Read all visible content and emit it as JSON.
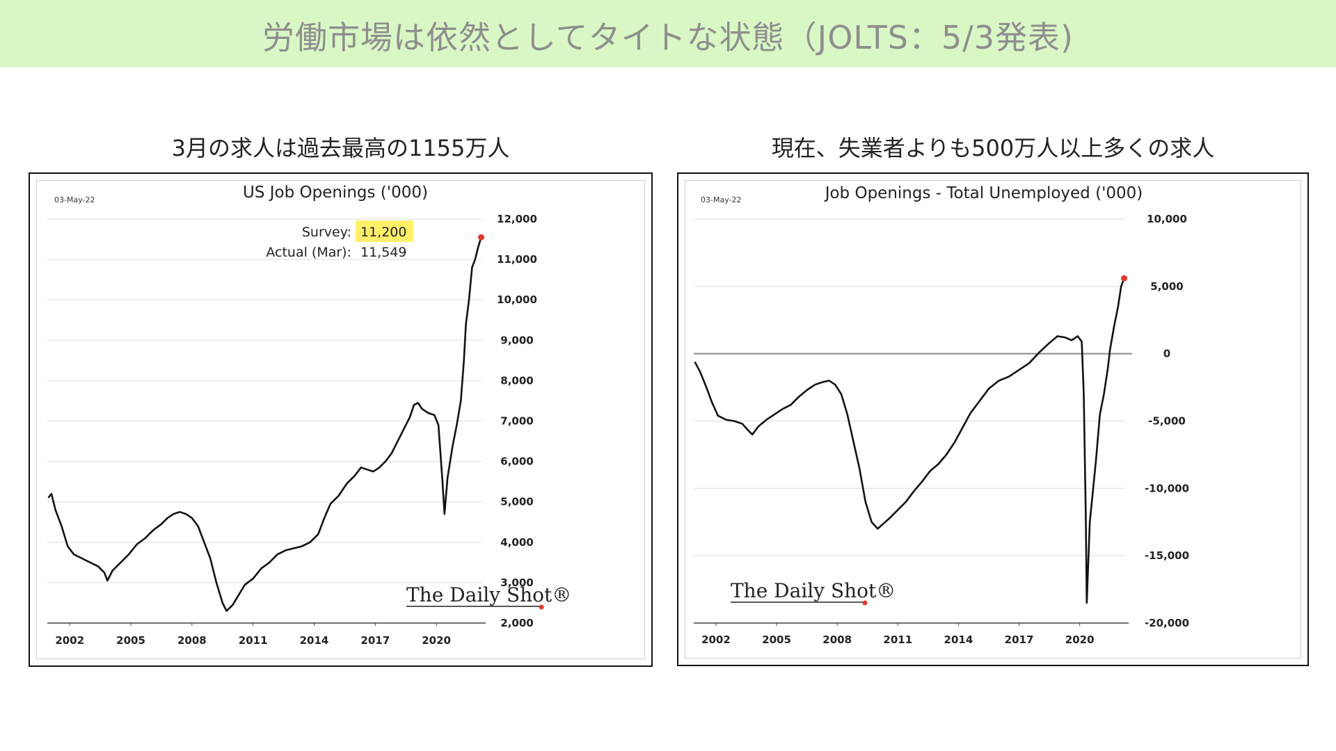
{
  "banner": {
    "title": "労働市場は依然としてタイトな状態（JOLTS：5/3発表)"
  },
  "left": {
    "subtitle": "3月の求人は過去最高の1155万人"
  },
  "right": {
    "subtitle": "現在、失業者よりも500万人以上多くの求人"
  },
  "colors": {
    "banner_bg": "#d9f7c4",
    "line": "#111111",
    "last_point": "#e03a2e",
    "highlight": "#fff06a",
    "zero_line": "#888888",
    "grid": "#e6e6e6"
  },
  "chart_data": [
    {
      "type": "line",
      "title": "US Job Openings ('000)",
      "date_stamp": "03-May-22",
      "brand": "The Daily Shot®",
      "annotation": {
        "survey_label": "Survey:",
        "survey_value": "11,200",
        "actual_label": "Actual (Mar):",
        "actual_value": "11,549"
      },
      "xlim": [
        2000.9,
        2022.25
      ],
      "ylim": [
        2000,
        12000
      ],
      "x_ticks": [
        2002,
        2005,
        2008,
        2011,
        2014,
        2017,
        2020
      ],
      "x_tick_labels": [
        "2002",
        "2005",
        "2008",
        "2011",
        "2014",
        "2017",
        "2020"
      ],
      "y_ticks": [
        2000,
        3000,
        4000,
        5000,
        6000,
        7000,
        8000,
        9000,
        10000,
        11000,
        12000
      ],
      "y_tick_labels": [
        "2,000",
        "3,000",
        "4,000",
        "5,000",
        "6,000",
        "7,000",
        "8,000",
        "9,000",
        "10,000",
        "11,000",
        "12,000"
      ],
      "grid": true,
      "y_axis_position": "right",
      "series": [
        {
          "values": [
            [
              2000.95,
              5100
            ],
            [
              2001.1,
              5200
            ],
            [
              2001.3,
              4800
            ],
            [
              2001.6,
              4400
            ],
            [
              2001.9,
              3900
            ],
            [
              2002.2,
              3700
            ],
            [
              2002.6,
              3600
            ],
            [
              2003.0,
              3500
            ],
            [
              2003.4,
              3400
            ],
            [
              2003.7,
              3250
            ],
            [
              2003.85,
              3050
            ],
            [
              2004.1,
              3300
            ],
            [
              2004.5,
              3500
            ],
            [
              2004.9,
              3700
            ],
            [
              2005.3,
              3950
            ],
            [
              2005.7,
              4100
            ],
            [
              2006.1,
              4300
            ],
            [
              2006.5,
              4450
            ],
            [
              2006.8,
              4600
            ],
            [
              2007.1,
              4700
            ],
            [
              2007.4,
              4750
            ],
            [
              2007.7,
              4700
            ],
            [
              2008.0,
              4600
            ],
            [
              2008.3,
              4400
            ],
            [
              2008.6,
              4000
            ],
            [
              2008.9,
              3600
            ],
            [
              2009.2,
              3000
            ],
            [
              2009.5,
              2500
            ],
            [
              2009.7,
              2300
            ],
            [
              2010.0,
              2450
            ],
            [
              2010.3,
              2700
            ],
            [
              2010.6,
              2950
            ],
            [
              2011.0,
              3100
            ],
            [
              2011.4,
              3350
            ],
            [
              2011.8,
              3500
            ],
            [
              2012.2,
              3700
            ],
            [
              2012.6,
              3800
            ],
            [
              2013.0,
              3850
            ],
            [
              2013.4,
              3900
            ],
            [
              2013.8,
              4000
            ],
            [
              2014.2,
              4200
            ],
            [
              2014.5,
              4600
            ],
            [
              2014.8,
              4950
            ],
            [
              2015.2,
              5150
            ],
            [
              2015.6,
              5450
            ],
            [
              2016.0,
              5650
            ],
            [
              2016.3,
              5850
            ],
            [
              2016.6,
              5800
            ],
            [
              2016.9,
              5750
            ],
            [
              2017.2,
              5850
            ],
            [
              2017.5,
              6000
            ],
            [
              2017.8,
              6200
            ],
            [
              2018.1,
              6500
            ],
            [
              2018.4,
              6800
            ],
            [
              2018.7,
              7100
            ],
            [
              2018.9,
              7400
            ],
            [
              2019.1,
              7450
            ],
            [
              2019.3,
              7300
            ],
            [
              2019.6,
              7200
            ],
            [
              2019.9,
              7150
            ],
            [
              2020.1,
              6900
            ],
            [
              2020.3,
              5500
            ],
            [
              2020.4,
              4700
            ],
            [
              2020.55,
              5600
            ],
            [
              2020.8,
              6400
            ],
            [
              2021.0,
              6900
            ],
            [
              2021.2,
              7500
            ],
            [
              2021.35,
              8500
            ],
            [
              2021.45,
              9400
            ],
            [
              2021.6,
              10000
            ],
            [
              2021.75,
              10800
            ],
            [
              2021.9,
              11000
            ],
            [
              2022.05,
              11300
            ],
            [
              2022.2,
              11549
            ]
          ]
        }
      ]
    },
    {
      "type": "line",
      "title": "Job Openings - Total Unemployed ('000)",
      "date_stamp": "03-May-22",
      "brand": "The Daily Shot®",
      "xlim": [
        2000.9,
        2022.25
      ],
      "ylim": [
        -20000,
        10000
      ],
      "x_ticks": [
        2002,
        2005,
        2008,
        2011,
        2014,
        2017,
        2020
      ],
      "x_tick_labels": [
        "2002",
        "2005",
        "2008",
        "2011",
        "2014",
        "2017",
        "2020"
      ],
      "y_ticks": [
        -20000,
        -15000,
        -10000,
        -5000,
        0,
        5000,
        10000
      ],
      "y_tick_labels": [
        "-20,000",
        "-15,000",
        "-10,000",
        "-5,000",
        "0",
        "5,000",
        "10,000"
      ],
      "grid": true,
      "y_axis_position": "right",
      "series": [
        {
          "values": [
            [
              2000.95,
              -600
            ],
            [
              2001.2,
              -1300
            ],
            [
              2001.5,
              -2400
            ],
            [
              2001.8,
              -3600
            ],
            [
              2002.1,
              -4600
            ],
            [
              2002.5,
              -4900
            ],
            [
              2002.9,
              -5000
            ],
            [
              2003.3,
              -5200
            ],
            [
              2003.6,
              -5700
            ],
            [
              2003.8,
              -6000
            ],
            [
              2004.1,
              -5400
            ],
            [
              2004.5,
              -4900
            ],
            [
              2004.9,
              -4500
            ],
            [
              2005.3,
              -4100
            ],
            [
              2005.7,
              -3800
            ],
            [
              2006.1,
              -3200
            ],
            [
              2006.5,
              -2700
            ],
            [
              2006.9,
              -2300
            ],
            [
              2007.3,
              -2100
            ],
            [
              2007.6,
              -2000
            ],
            [
              2007.9,
              -2300
            ],
            [
              2008.2,
              -3000
            ],
            [
              2008.5,
              -4500
            ],
            [
              2008.8,
              -6500
            ],
            [
              2009.1,
              -8500
            ],
            [
              2009.4,
              -11000
            ],
            [
              2009.7,
              -12500
            ],
            [
              2010.0,
              -13000
            ],
            [
              2010.3,
              -12600
            ],
            [
              2010.6,
              -12200
            ],
            [
              2011.0,
              -11600
            ],
            [
              2011.4,
              -11000
            ],
            [
              2011.8,
              -10200
            ],
            [
              2012.2,
              -9500
            ],
            [
              2012.6,
              -8700
            ],
            [
              2013.0,
              -8200
            ],
            [
              2013.4,
              -7500
            ],
            [
              2013.8,
              -6600
            ],
            [
              2014.2,
              -5500
            ],
            [
              2014.6,
              -4400
            ],
            [
              2015.0,
              -3600
            ],
            [
              2015.5,
              -2600
            ],
            [
              2016.0,
              -2000
            ],
            [
              2016.5,
              -1700
            ],
            [
              2017.0,
              -1200
            ],
            [
              2017.5,
              -700
            ],
            [
              2018.0,
              100
            ],
            [
              2018.5,
              800
            ],
            [
              2018.9,
              1300
            ],
            [
              2019.3,
              1200
            ],
            [
              2019.6,
              1000
            ],
            [
              2019.9,
              1300
            ],
            [
              2020.1,
              900
            ],
            [
              2020.2,
              -3000
            ],
            [
              2020.3,
              -12000
            ],
            [
              2020.35,
              -18500
            ],
            [
              2020.5,
              -12500
            ],
            [
              2020.8,
              -8000
            ],
            [
              2021.0,
              -4500
            ],
            [
              2021.2,
              -3000
            ],
            [
              2021.4,
              -1000
            ],
            [
              2021.5,
              300
            ],
            [
              2021.7,
              2000
            ],
            [
              2021.9,
              3500
            ],
            [
              2022.05,
              5000
            ],
            [
              2022.2,
              5600
            ]
          ]
        }
      ]
    }
  ]
}
